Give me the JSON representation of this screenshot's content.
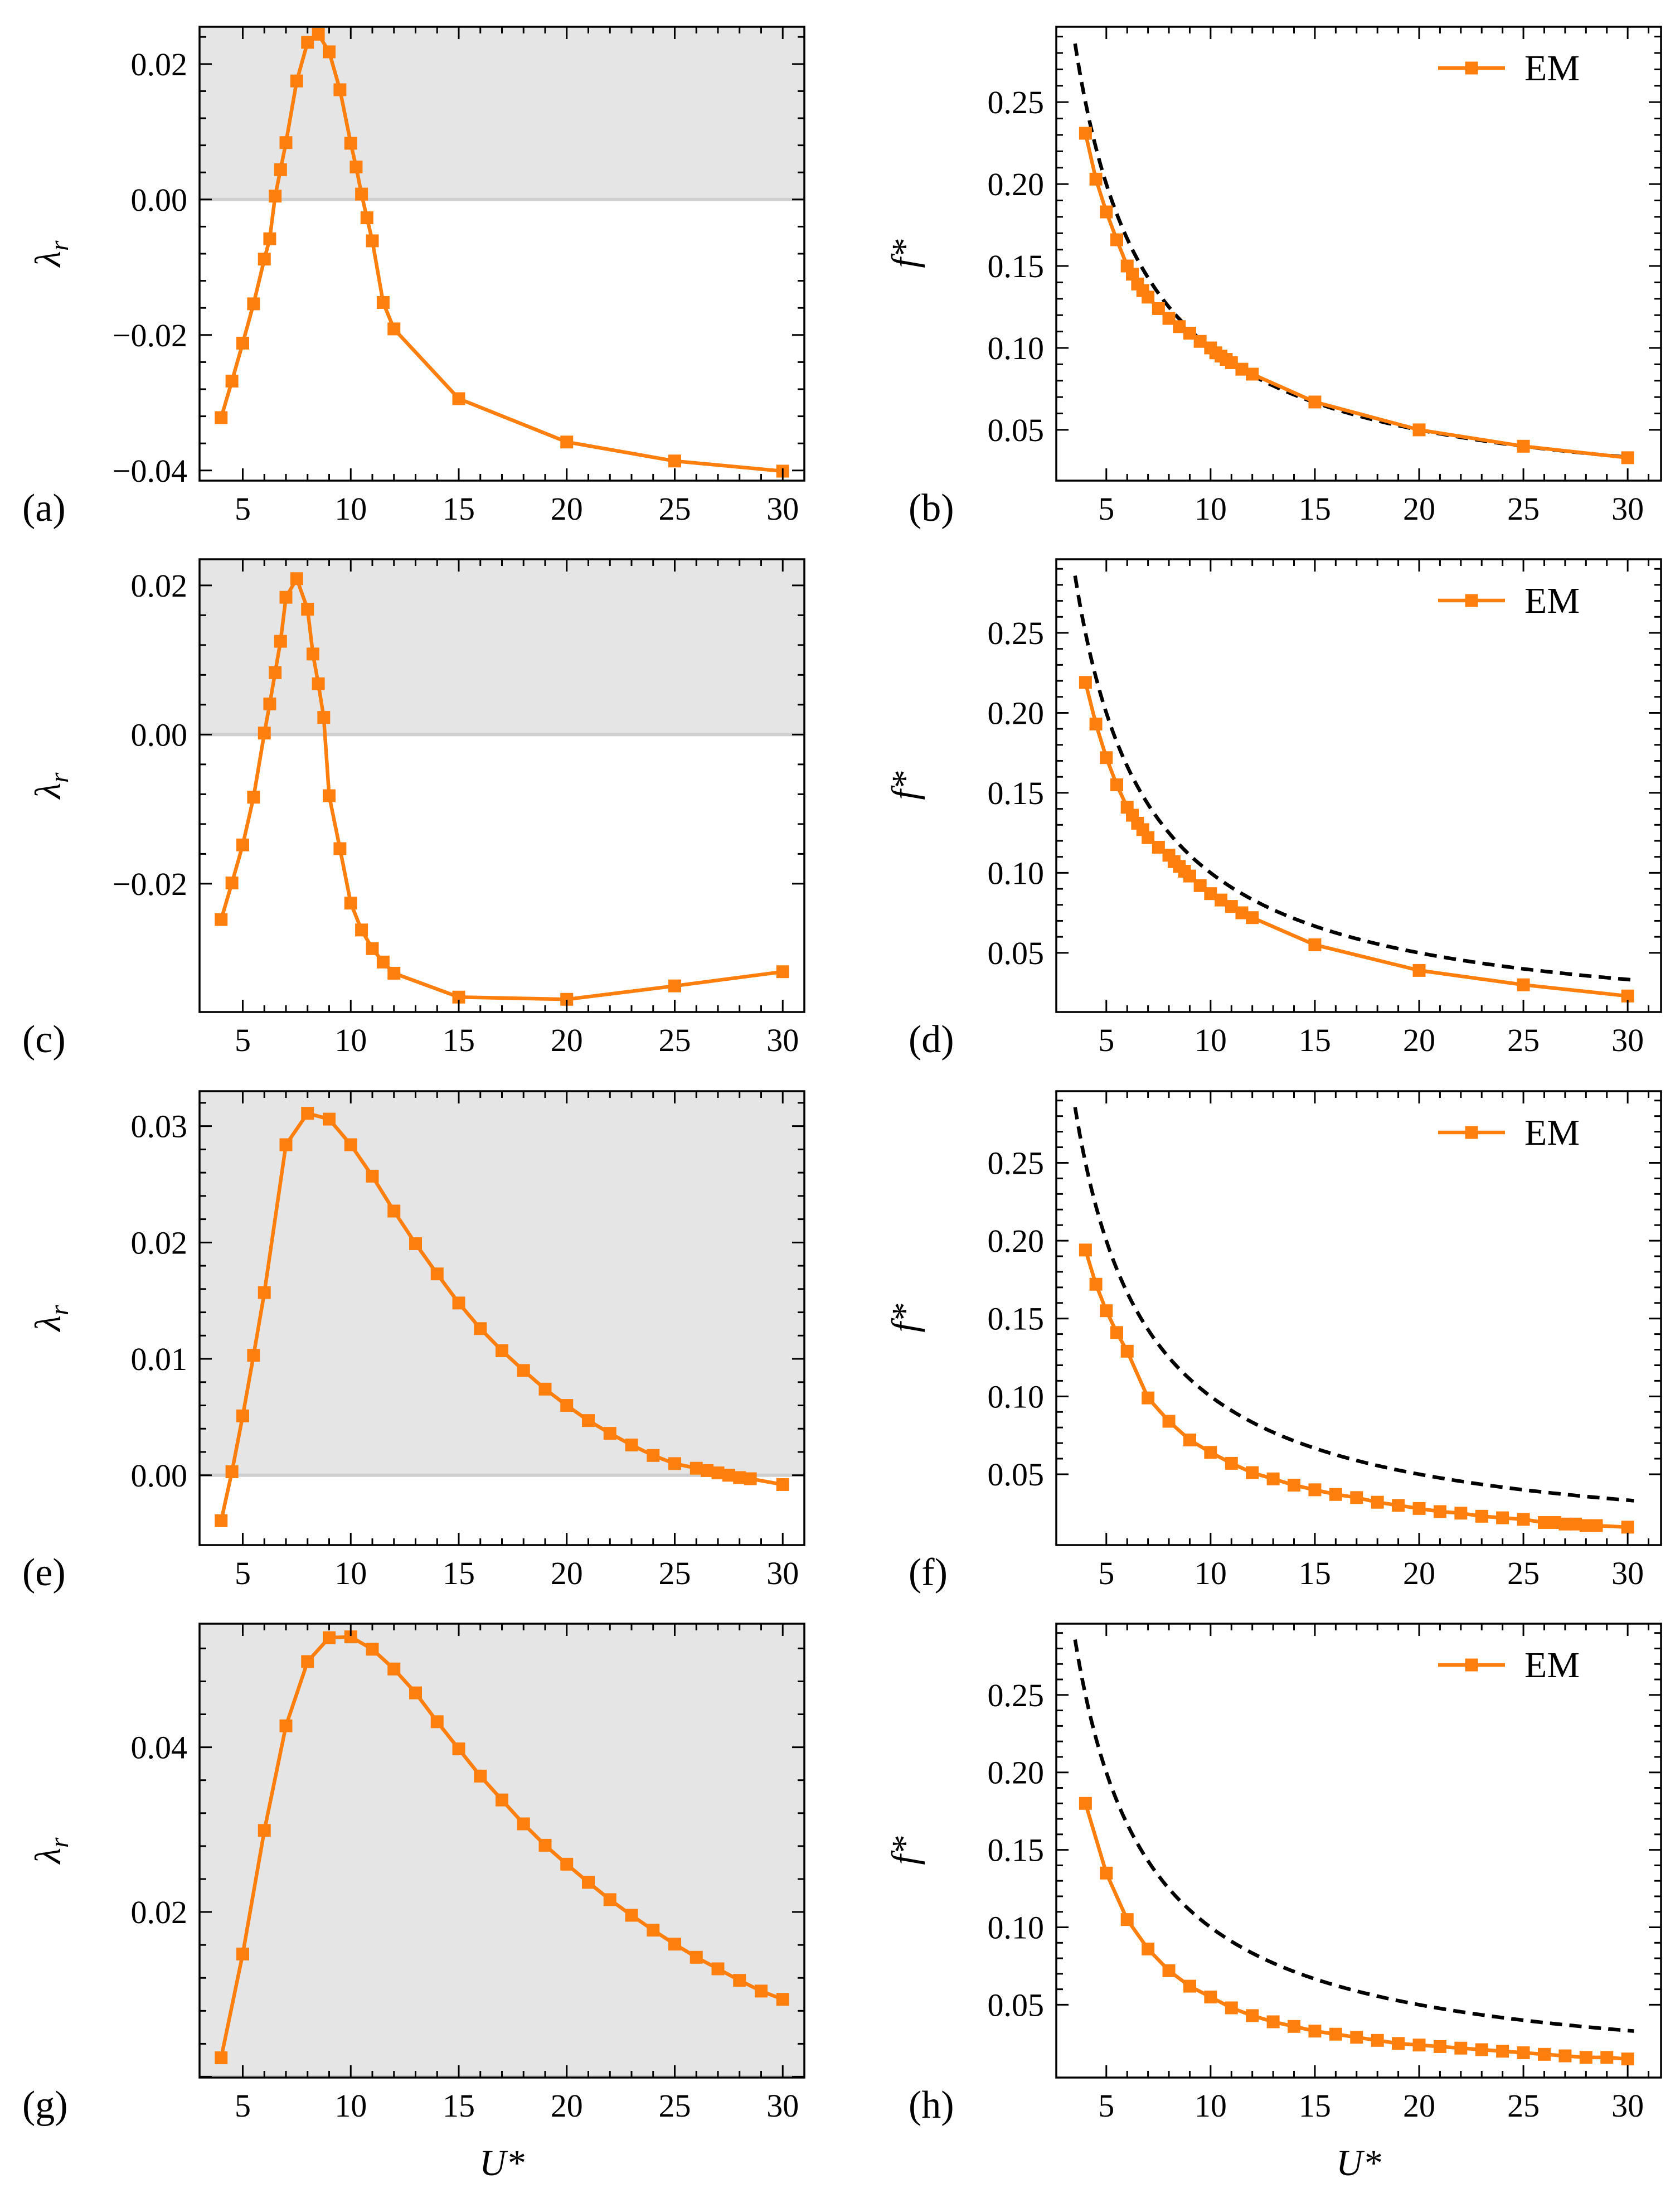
{
  "figure": {
    "colors": {
      "series": "#ff7f0e",
      "reference": "#000000",
      "shade": "#e5e5e5",
      "zero_line": "#cfcfcf"
    },
    "shared_xlabel": "U*",
    "legend_label": "EM"
  },
  "chart_data": [
    {
      "id": "a",
      "panel_label": "(a)",
      "type": "line",
      "xlabel": "",
      "ylabel": "λ_r",
      "ylabel_main": "λ",
      "ylabel_sub": "r",
      "xlim": [
        3,
        31
      ],
      "ylim": [
        -0.0415,
        0.0255
      ],
      "xticks": [
        5,
        10,
        15,
        20,
        25,
        30
      ],
      "xtick_labels": [
        "5",
        "10",
        "15",
        "20",
        "25",
        "30"
      ],
      "yticks": [
        -0.04,
        -0.02,
        0.0,
        0.02
      ],
      "ytick_labels": [
        "−0.04",
        "−0.02",
        "0.00",
        "0.02"
      ],
      "shading": "positive",
      "series": [
        {
          "name": "λ_r",
          "x": [
            4,
            4.5,
            5,
            5.5,
            6,
            6.25,
            6.5,
            6.75,
            7,
            7.5,
            8,
            8.5,
            9,
            9.5,
            10,
            10.25,
            10.5,
            10.75,
            11,
            11.5,
            12,
            15,
            20,
            25,
            30
          ],
          "y": [
            -0.0322,
            -0.0268,
            -0.0212,
            -0.0154,
            -0.0088,
            -0.0058,
            0.0005,
            0.0044,
            0.0084,
            0.0175,
            0.0232,
            0.0244,
            0.0218,
            0.0162,
            0.0083,
            0.0048,
            0.0008,
            -0.0027,
            -0.0061,
            -0.0152,
            -0.0191,
            -0.0294,
            -0.0358,
            -0.0386,
            -0.0401
          ]
        }
      ]
    },
    {
      "id": "b",
      "panel_label": "(b)",
      "type": "line",
      "xlabel": "",
      "ylabel": "f*",
      "xlim": [
        2.6,
        31.6
      ],
      "ylim": [
        0.019,
        0.296
      ],
      "xticks": [
        5,
        10,
        15,
        20,
        25,
        30
      ],
      "xtick_labels": [
        "5",
        "10",
        "15",
        "20",
        "25",
        "30"
      ],
      "yticks": [
        0.05,
        0.1,
        0.15,
        0.2,
        0.25
      ],
      "ytick_labels": [
        "0.05",
        "0.10",
        "0.15",
        "0.20",
        "0.25"
      ],
      "legend": [
        "EM"
      ],
      "legend_position": "top-right",
      "reference_curve": {
        "style": "dashed",
        "equation": "f* = 1/U*",
        "x_range": [
          3.5,
          30.3
        ]
      },
      "series": [
        {
          "name": "EM",
          "x": [
            4,
            4.5,
            5,
            5.5,
            6,
            6.25,
            6.5,
            6.75,
            7,
            7.5,
            8,
            8.5,
            9,
            9.5,
            10,
            10.25,
            10.5,
            10.75,
            11,
            11.5,
            12,
            15,
            20,
            25,
            30
          ],
          "y": [
            0.231,
            0.203,
            0.183,
            0.166,
            0.15,
            0.145,
            0.139,
            0.135,
            0.131,
            0.124,
            0.118,
            0.113,
            0.109,
            0.104,
            0.1,
            0.097,
            0.095,
            0.093,
            0.091,
            0.087,
            0.084,
            0.067,
            0.05,
            0.04,
            0.033
          ]
        }
      ]
    },
    {
      "id": "c",
      "panel_label": "(c)",
      "type": "line",
      "xlabel": "",
      "ylabel": "λ_r",
      "ylabel_main": "λ",
      "ylabel_sub": "r",
      "xlim": [
        3,
        31
      ],
      "ylim": [
        -0.0372,
        0.0235
      ],
      "xticks": [
        5,
        10,
        15,
        20,
        25,
        30
      ],
      "xtick_labels": [
        "5",
        "10",
        "15",
        "20",
        "25",
        "30"
      ],
      "yticks": [
        -0.02,
        0.0,
        0.02
      ],
      "ytick_labels": [
        "−0.02",
        "0.00",
        "0.02"
      ],
      "shading": "positive",
      "series": [
        {
          "name": "λ_r",
          "x": [
            4,
            4.5,
            5,
            5.5,
            6,
            6.25,
            6.5,
            6.75,
            7,
            7.5,
            8,
            8.25,
            8.5,
            8.75,
            9,
            9.5,
            10,
            10.5,
            11,
            11.5,
            12,
            15,
            20,
            25,
            30
          ],
          "y": [
            -0.0248,
            -0.0199,
            -0.0148,
            -0.0084,
            0.0002,
            0.0041,
            0.0083,
            0.0125,
            0.0184,
            0.0209,
            0.0168,
            0.0108,
            0.0068,
            0.0023,
            -0.0082,
            -0.0153,
            -0.0226,
            -0.0262,
            -0.0287,
            -0.0305,
            -0.032,
            -0.0352,
            -0.0355,
            -0.0337,
            -0.0318
          ]
        }
      ]
    },
    {
      "id": "d",
      "panel_label": "(d)",
      "type": "line",
      "xlabel": "",
      "ylabel": "f*",
      "xlim": [
        2.6,
        31.6
      ],
      "ylim": [
        0.013,
        0.296
      ],
      "xticks": [
        5,
        10,
        15,
        20,
        25,
        30
      ],
      "xtick_labels": [
        "5",
        "10",
        "15",
        "20",
        "25",
        "30"
      ],
      "yticks": [
        0.05,
        0.1,
        0.15,
        0.2,
        0.25
      ],
      "ytick_labels": [
        "0.05",
        "0.10",
        "0.15",
        "0.20",
        "0.25"
      ],
      "legend": [
        "EM"
      ],
      "legend_position": "top-right",
      "reference_curve": {
        "style": "dashed",
        "equation": "f* = 1/U*",
        "x_range": [
          3.5,
          30.3
        ]
      },
      "series": [
        {
          "name": "EM",
          "x": [
            4,
            4.5,
            5,
            5.5,
            6,
            6.25,
            6.5,
            6.75,
            7,
            7.5,
            8,
            8.25,
            8.5,
            8.75,
            9,
            9.5,
            10,
            10.5,
            11,
            11.5,
            12,
            15,
            20,
            25,
            30
          ],
          "y": [
            0.219,
            0.193,
            0.172,
            0.155,
            0.141,
            0.136,
            0.131,
            0.127,
            0.122,
            0.116,
            0.111,
            0.107,
            0.104,
            0.101,
            0.098,
            0.092,
            0.087,
            0.083,
            0.079,
            0.075,
            0.072,
            0.055,
            0.039,
            0.03,
            0.023
          ]
        }
      ]
    },
    {
      "id": "e",
      "panel_label": "(e)",
      "type": "line",
      "xlabel": "",
      "ylabel": "λ_r",
      "ylabel_main": "λ",
      "ylabel_sub": "r",
      "xlim": [
        3,
        31
      ],
      "ylim": [
        -0.006,
        0.033
      ],
      "xticks": [
        5,
        10,
        15,
        20,
        25,
        30
      ],
      "xtick_labels": [
        "5",
        "10",
        "15",
        "20",
        "25",
        "30"
      ],
      "yticks": [
        0.0,
        0.01,
        0.02,
        0.03
      ],
      "ytick_labels": [
        "0.00",
        "0.01",
        "0.02",
        "0.03"
      ],
      "shading": "positive",
      "series": [
        {
          "name": "λ_r",
          "x": [
            4,
            4.5,
            5,
            5.5,
            6,
            7,
            8,
            9,
            10,
            11,
            12,
            13,
            14,
            15,
            16,
            17,
            18,
            19,
            20,
            21,
            22,
            23,
            24,
            25,
            26,
            26.5,
            27,
            27.5,
            28,
            28.5,
            30
          ],
          "y": [
            -0.0039,
            0.0003,
            0.0051,
            0.0103,
            0.0157,
            0.0284,
            0.0311,
            0.0306,
            0.0284,
            0.0257,
            0.0227,
            0.0199,
            0.0173,
            0.0148,
            0.0126,
            0.0107,
            0.009,
            0.0074,
            0.006,
            0.0047,
            0.0036,
            0.0026,
            0.0017,
            0.001,
            0.0006,
            0.0004,
            0.0002,
            0.0,
            -0.0002,
            -0.0003,
            -0.0008
          ]
        }
      ]
    },
    {
      "id": "f",
      "panel_label": "(f)",
      "type": "line",
      "xlabel": "",
      "ylabel": "f*",
      "xlim": [
        2.6,
        31.6
      ],
      "ylim": [
        0.0045,
        0.296
      ],
      "xticks": [
        5,
        10,
        15,
        20,
        25,
        30
      ],
      "xtick_labels": [
        "5",
        "10",
        "15",
        "20",
        "25",
        "30"
      ],
      "yticks": [
        0.05,
        0.1,
        0.15,
        0.2,
        0.25
      ],
      "ytick_labels": [
        "0.05",
        "0.10",
        "0.15",
        "0.20",
        "0.25"
      ],
      "legend": [
        "EM"
      ],
      "legend_position": "top-right",
      "reference_curve": {
        "style": "dashed",
        "equation": "f* = 1/U*",
        "x_range": [
          3.5,
          30.3
        ]
      },
      "series": [
        {
          "name": "EM",
          "x": [
            4,
            4.5,
            5,
            5.5,
            6,
            7,
            8,
            9,
            10,
            11,
            12,
            13,
            14,
            15,
            16,
            17,
            18,
            19,
            20,
            21,
            22,
            23,
            24,
            25,
            26,
            26.5,
            27,
            27.5,
            28,
            28.5,
            30
          ],
          "y": [
            0.194,
            0.172,
            0.155,
            0.141,
            0.129,
            0.099,
            0.084,
            0.072,
            0.064,
            0.057,
            0.051,
            0.047,
            0.043,
            0.04,
            0.037,
            0.035,
            0.032,
            0.03,
            0.028,
            0.026,
            0.025,
            0.023,
            0.022,
            0.021,
            0.019,
            0.019,
            0.018,
            0.018,
            0.017,
            0.017,
            0.016
          ]
        }
      ]
    },
    {
      "id": "g",
      "panel_label": "(g)",
      "type": "line",
      "xlabel": "U*",
      "ylabel": "λ_r",
      "ylabel_main": "λ",
      "ylabel_sub": "r",
      "xlim": [
        3,
        31
      ],
      "ylim": [
        -0.0001,
        0.055
      ],
      "xticks": [
        5,
        10,
        15,
        20,
        25,
        30
      ],
      "xtick_labels": [
        "5",
        "10",
        "15",
        "20",
        "25",
        "30"
      ],
      "yticks": [
        0.02,
        0.04
      ],
      "ytick_labels": [
        "0.02",
        "0.04"
      ],
      "shading": "positive",
      "series": [
        {
          "name": "λ_r",
          "x": [
            4,
            5,
            6,
            7,
            8,
            9,
            10,
            11,
            12,
            13,
            14,
            15,
            16,
            17,
            18,
            19,
            20,
            21,
            22,
            23,
            24,
            25,
            26,
            27,
            28,
            29,
            30
          ],
          "y": [
            0.0023,
            0.0149,
            0.0299,
            0.0426,
            0.0504,
            0.0533,
            0.0534,
            0.0519,
            0.0495,
            0.0466,
            0.0431,
            0.0398,
            0.0365,
            0.0336,
            0.0307,
            0.0281,
            0.0258,
            0.0236,
            0.0215,
            0.0196,
            0.0178,
            0.0161,
            0.0145,
            0.0131,
            0.0117,
            0.0104,
            0.0094
          ]
        }
      ]
    },
    {
      "id": "h",
      "panel_label": "(h)",
      "type": "line",
      "xlabel": "U*",
      "ylabel": "f*",
      "xlim": [
        2.6,
        31.6
      ],
      "ylim": [
        0.003,
        0.296
      ],
      "xticks": [
        5,
        10,
        15,
        20,
        25,
        30
      ],
      "xtick_labels": [
        "5",
        "10",
        "15",
        "20",
        "25",
        "30"
      ],
      "yticks": [
        0.05,
        0.1,
        0.15,
        0.2,
        0.25
      ],
      "ytick_labels": [
        "0.05",
        "0.10",
        "0.15",
        "0.20",
        "0.25"
      ],
      "legend": [
        "EM"
      ],
      "legend_position": "top-right",
      "reference_curve": {
        "style": "dashed",
        "equation": "f* = 1/U*",
        "x_range": [
          3.5,
          30.3
        ]
      },
      "series": [
        {
          "name": "EM",
          "x": [
            4,
            5,
            6,
            7,
            8,
            9,
            10,
            11,
            12,
            13,
            14,
            15,
            16,
            17,
            18,
            19,
            20,
            21,
            22,
            23,
            24,
            25,
            26,
            27,
            28,
            29,
            30
          ],
          "y": [
            0.18,
            0.135,
            0.105,
            0.086,
            0.072,
            0.062,
            0.055,
            0.048,
            0.043,
            0.039,
            0.036,
            0.033,
            0.031,
            0.029,
            0.027,
            0.025,
            0.024,
            0.023,
            0.022,
            0.021,
            0.02,
            0.019,
            0.018,
            0.017,
            0.016,
            0.016,
            0.015
          ]
        }
      ]
    }
  ]
}
